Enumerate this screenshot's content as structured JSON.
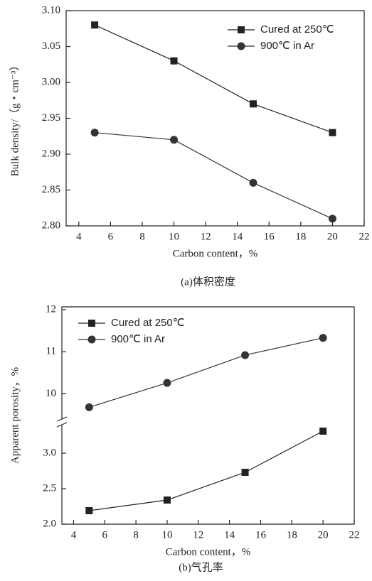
{
  "chart_data": [
    {
      "type": "line",
      "caption": "(a)体积密度",
      "x_label": "Carbon content，%",
      "y_label": "Bulk density/（g・cm⁻³）",
      "x": [
        5,
        10,
        15,
        20
      ],
      "xlim": [
        3.2,
        22
      ],
      "xticks": [
        4,
        6,
        8,
        10,
        12,
        14,
        16,
        18,
        20,
        22
      ],
      "ylim": [
        2.8,
        3.1
      ],
      "yticks": [
        {
          "value": 2.8,
          "label": "2.80"
        },
        2.85,
        {
          "value": 2.9,
          "label": "2.90"
        },
        2.95,
        {
          "value": 3.0,
          "label": "3.00"
        },
        3.05,
        {
          "value": 3.1,
          "label": "3.10"
        }
      ],
      "legend": "upper right",
      "series": [
        {
          "name": "Cured at 250℃",
          "color": "#222222",
          "marker": "square",
          "values": [
            3.08,
            3.03,
            2.97,
            2.93
          ]
        },
        {
          "name": "900℃ in Ar",
          "color": "#333333",
          "marker": "circle",
          "values": [
            2.93,
            2.92,
            2.86,
            2.81
          ]
        }
      ]
    },
    {
      "type": "line",
      "caption": "(b)气孔率",
      "x_label": "Carbon content，%",
      "y_label": "Apparent porosity，%",
      "x": [
        5,
        10,
        15,
        20
      ],
      "xlim": [
        3.25,
        22
      ],
      "xticks": [
        4,
        6,
        8,
        10,
        12,
        14,
        16,
        18,
        20,
        22
      ],
      "y_segments": [
        {
          "ylim": [
            2.0,
            3.4
          ],
          "yticks": [
            {
              "value": 2.0,
              "label": "2.0"
            },
            2.5,
            {
              "value": 3.0,
              "label": "3.0"
            }
          ]
        },
        {
          "ylim": [
            9.4,
            12
          ],
          "yticks": [
            10,
            11,
            12
          ]
        }
      ],
      "legend": "upper left",
      "series": [
        {
          "name": "Cured at 250℃",
          "color": "#222222",
          "marker": "square",
          "values": [
            2.19,
            2.34,
            2.73,
            3.31
          ]
        },
        {
          "name": "900℃ in Ar",
          "color": "#333333",
          "marker": "circle",
          "values": [
            9.68,
            10.26,
            10.92,
            11.33
          ]
        }
      ]
    }
  ]
}
